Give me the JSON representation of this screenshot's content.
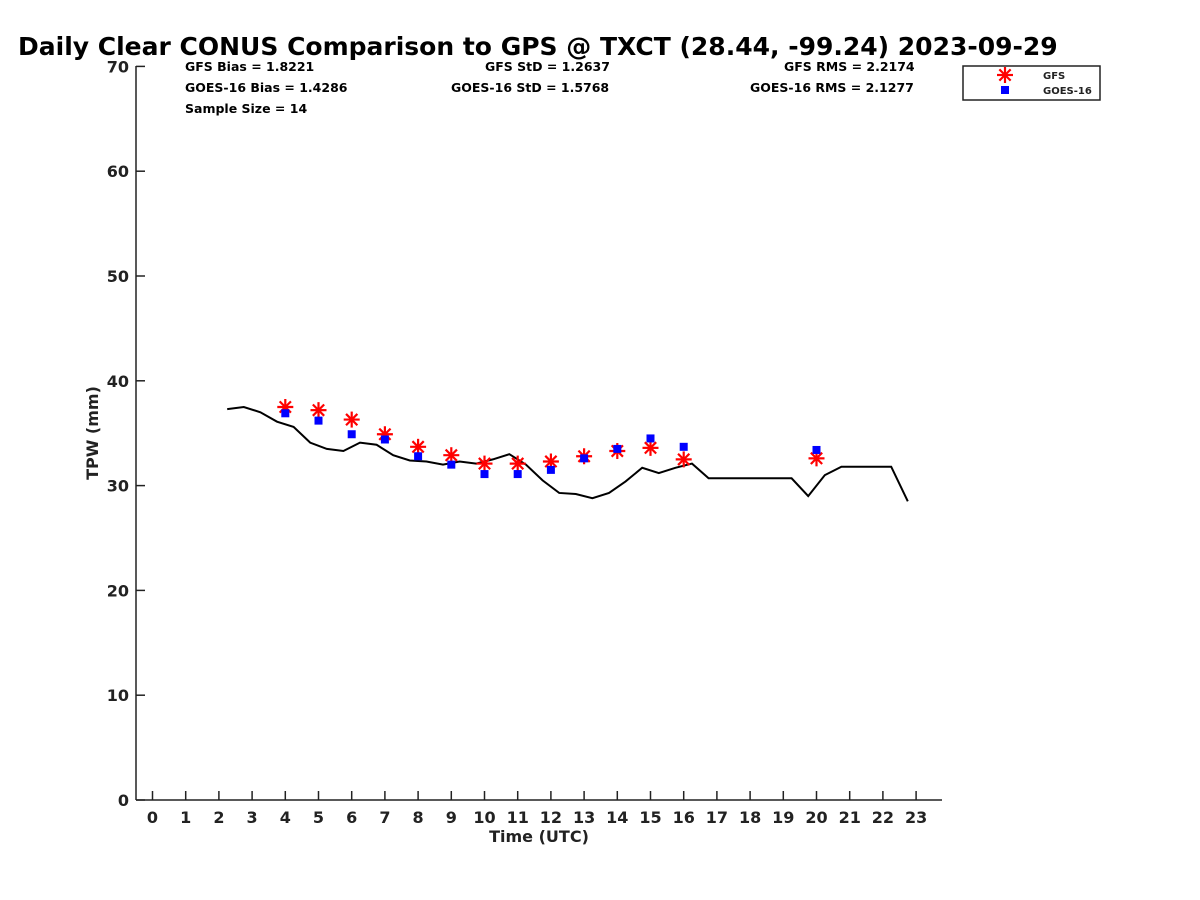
{
  "chart_data": {
    "type": "scatter",
    "title": "Daily Clear CONUS Comparison to GPS @ TXCT (28.44, -99.24) 2023-09-29",
    "xlabel": "Time (UTC)",
    "ylabel": "TPW (mm)",
    "xlim": [
      -0.5,
      23.8
    ],
    "ylim": [
      0,
      70
    ],
    "x_ticks": [
      0,
      1,
      2,
      3,
      4,
      5,
      6,
      7,
      8,
      9,
      10,
      11,
      12,
      13,
      14,
      15,
      16,
      17,
      18,
      19,
      20,
      21,
      22,
      23
    ],
    "y_ticks": [
      0,
      10,
      20,
      30,
      40,
      50,
      60,
      70
    ],
    "grid": false,
    "legend_position": "top-right",
    "stats": {
      "gfs_bias": "GFS Bias = 1.8221",
      "goes_bias": "GOES-16 Bias = 1.4286",
      "sample_size": "Sample Size = 14",
      "gfs_std": "GFS StD = 1.2637",
      "goes_std": "GOES-16 StD = 1.5768",
      "gfs_rms": "GFS RMS = 2.2174",
      "goes_rms": "GOES-16 RMS = 2.1277"
    },
    "series": [
      {
        "kind": "line",
        "color": "#000000",
        "x": [
          2.25,
          2.75,
          3.25,
          3.75,
          4.25,
          4.75,
          5.25,
          5.75,
          6.25,
          6.75,
          7.25,
          7.75,
          8.25,
          8.75,
          9.25,
          9.75,
          10.25,
          10.75,
          11.25,
          11.75,
          12.25,
          12.75,
          13.25,
          13.75,
          14.25,
          14.75,
          15.25,
          15.75,
          16.25,
          16.75,
          17.25,
          17.75,
          18.25,
          18.75,
          19.25,
          19.75,
          20.25,
          20.75,
          21.25,
          21.75,
          22.25,
          22.75
        ],
        "y": [
          37.3,
          37.5,
          37.0,
          36.1,
          35.6,
          34.1,
          33.5,
          33.3,
          34.1,
          33.9,
          32.9,
          32.4,
          32.3,
          32.0,
          32.3,
          32.1,
          32.5,
          33.0,
          32.0,
          30.5,
          29.3,
          29.2,
          28.8,
          29.3,
          30.4,
          31.7,
          31.2,
          31.7,
          32.1,
          30.7,
          30.7,
          30.7,
          30.7,
          30.7,
          30.7,
          29.0,
          31.0,
          31.8,
          31.8,
          31.8,
          31.8,
          28.5
        ]
      },
      {
        "name": "GFS",
        "kind": "asterisk",
        "color": "#ff0000",
        "x": [
          4,
          5,
          6,
          7,
          8,
          9,
          10,
          11,
          12,
          13,
          14,
          15,
          16,
          20
        ],
        "y": [
          37.5,
          37.2,
          36.3,
          34.9,
          33.7,
          32.9,
          32.1,
          32.1,
          32.3,
          32.8,
          33.3,
          33.6,
          32.5,
          32.6
        ]
      },
      {
        "name": "GOES-16",
        "kind": "square",
        "color": "#0000ff",
        "x": [
          4,
          5,
          6,
          7,
          8,
          9,
          10,
          11,
          12,
          13,
          14,
          15,
          16,
          20
        ],
        "y": [
          36.9,
          36.2,
          34.9,
          34.4,
          32.8,
          32.0,
          31.1,
          31.1,
          31.5,
          32.6,
          33.5,
          34.5,
          33.7,
          33.4
        ]
      }
    ]
  }
}
